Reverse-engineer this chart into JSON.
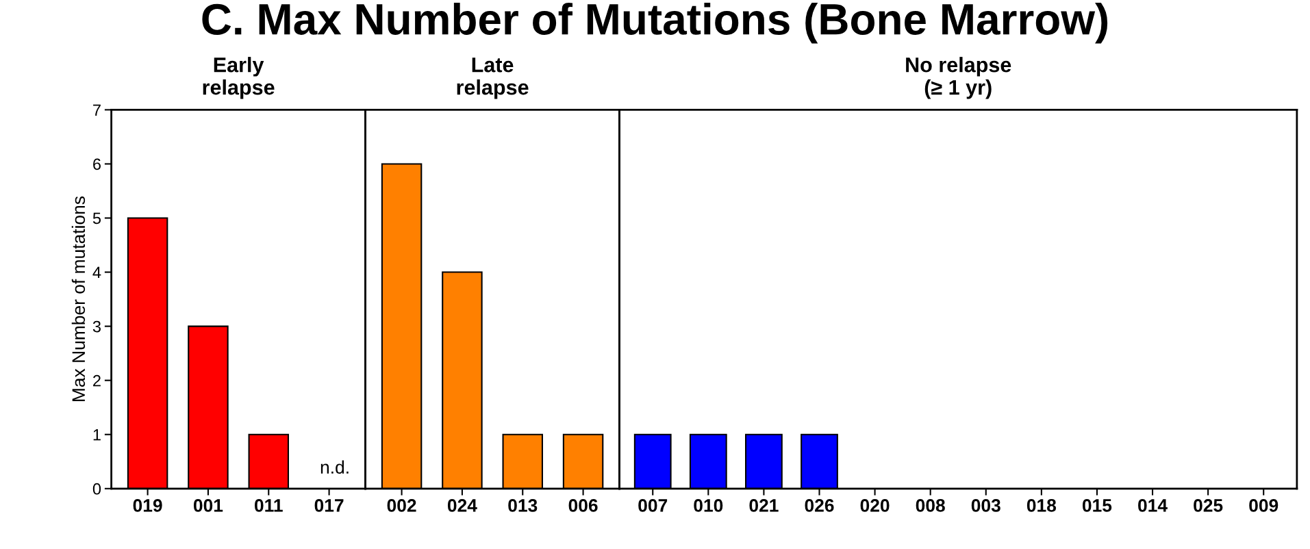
{
  "chart_data": [
    {
      "type": "bar",
      "title": "C. Max Number of Mutations (Bone Marrow)",
      "subtitle": "Early\nrelapse",
      "ylabel": "Max Number of mutations",
      "categories": [
        "019",
        "001",
        "011",
        "017"
      ],
      "values": [
        5,
        3,
        1,
        null
      ],
      "color": "#ff0000",
      "ylim": [
        0,
        7
      ],
      "yticks": [
        0,
        1,
        2,
        3,
        4,
        5,
        6,
        7
      ],
      "annotations": [
        "n.d."
      ]
    },
    {
      "type": "bar",
      "subtitle": "Late\nrelapse",
      "categories": [
        "002",
        "024",
        "013",
        "006"
      ],
      "values": [
        6,
        4,
        1,
        1
      ],
      "color": "#ff8000",
      "ylim": [
        0,
        7
      ],
      "tick_labels": "x"
    },
    {
      "type": "bar",
      "subtitle": "No relapse\n(≥ 1 yr)",
      "categories": [
        "007",
        "010",
        "021",
        "026",
        "020",
        "008",
        "003",
        "018",
        "015",
        "014",
        "025",
        "009"
      ],
      "values": [
        1,
        1,
        1,
        1,
        0,
        0,
        0,
        0,
        0,
        0,
        0,
        0
      ],
      "color": "#0000ff",
      "ylim": [
        0,
        7
      ],
      "tick_labels": "x"
    }
  ]
}
